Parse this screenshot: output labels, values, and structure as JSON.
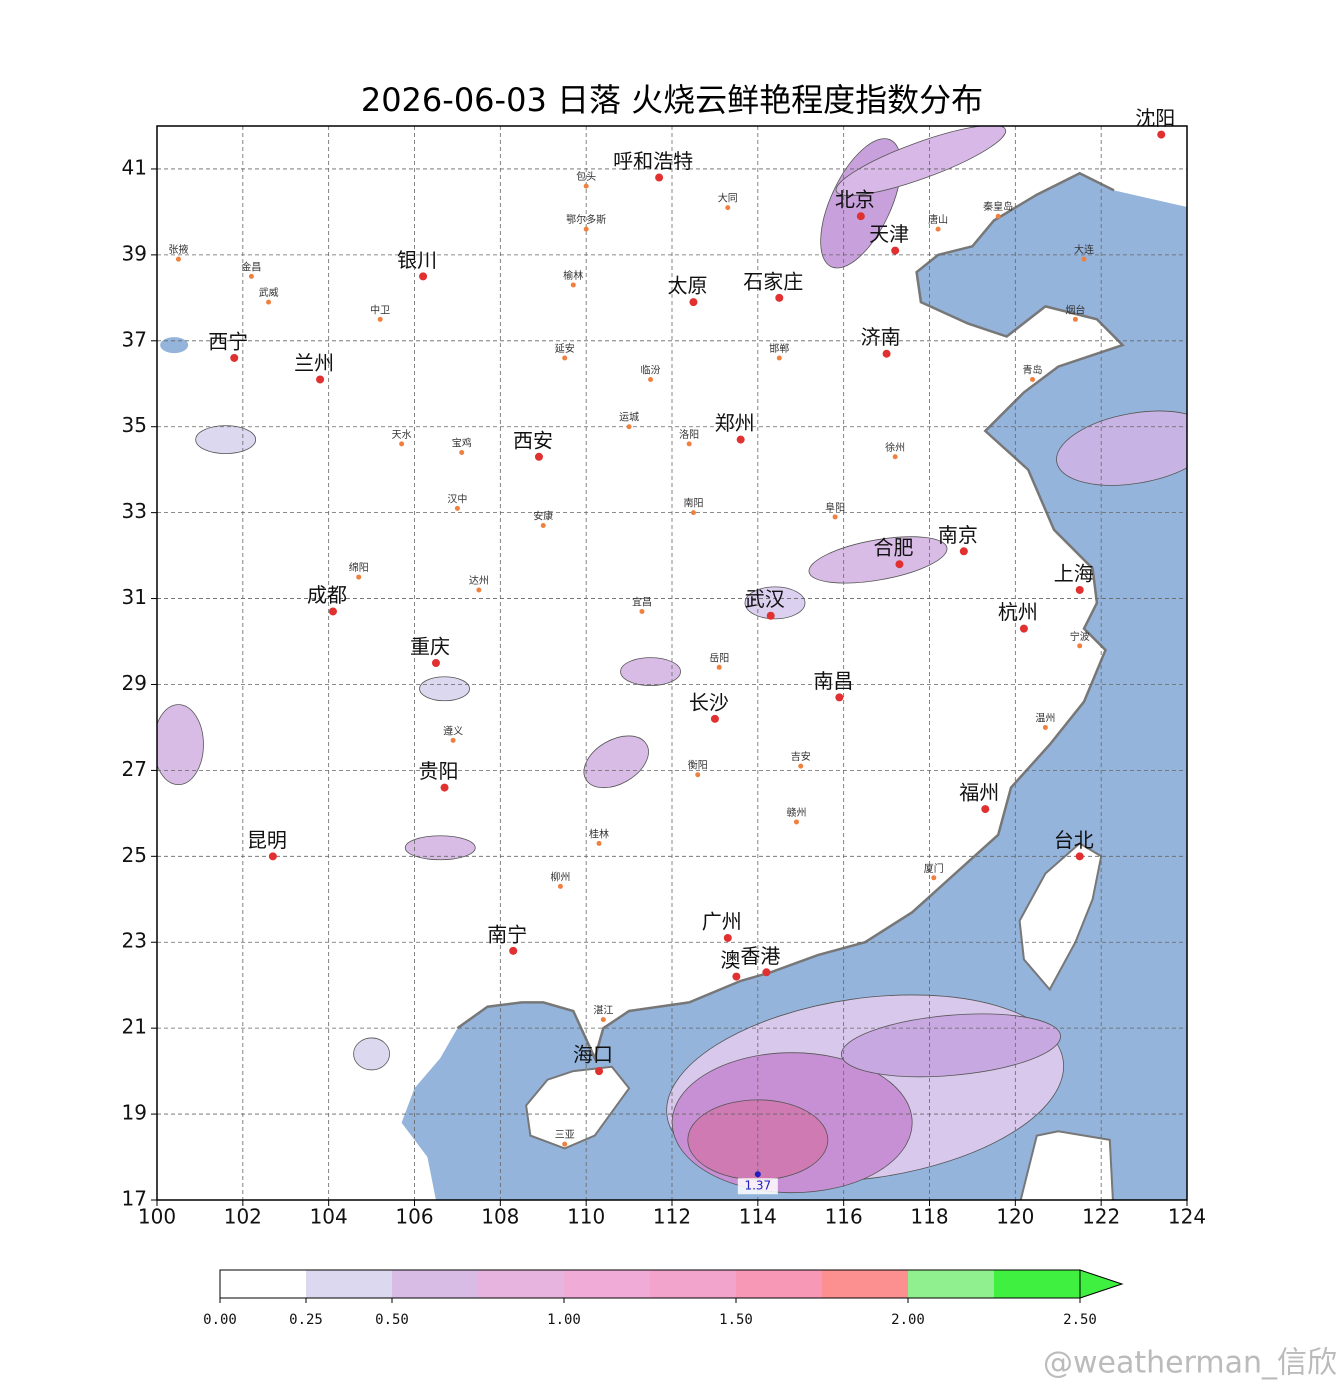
{
  "title": "2026-06-03 日落 火烧云鲜艳程度指数分布",
  "map": {
    "xlim": [
      100,
      124
    ],
    "ylim": [
      17,
      42
    ],
    "xticks": [
      100,
      102,
      104,
      106,
      108,
      110,
      112,
      114,
      116,
      118,
      120,
      122,
      124
    ],
    "yticks": [
      17,
      19,
      21,
      23,
      25,
      27,
      29,
      31,
      33,
      35,
      37,
      39,
      41
    ],
    "grid": true,
    "sea_color": "#94b4dc"
  },
  "cities_major": [
    "沈阳",
    "呼和浩特",
    "北京",
    "天津",
    "银川",
    "太原",
    "石家庄",
    "西宁",
    "兰州",
    "济南",
    "西安",
    "郑州",
    "合肥",
    "南京",
    "上海",
    "成都",
    "武汉",
    "杭州",
    "重庆",
    "南昌",
    "长沙",
    "贵阳",
    "福州",
    "昆明",
    "台北",
    "广州",
    "南宁",
    "澳",
    "香港",
    "海口"
  ],
  "cities_minor": [
    "张掖",
    "武威",
    "金昌",
    "中卫",
    "延安",
    "榆林",
    "大同",
    "包头",
    "鄂尔多斯",
    "临汾",
    "运城",
    "洛阳",
    "南阳",
    "宝鸡",
    "天水",
    "汉中",
    "安康",
    "达州",
    "宜昌",
    "岳阳",
    "赣州",
    "桂林",
    "柳州",
    "湛江",
    "厦门",
    "温州",
    "宁波",
    "青岛",
    "烟台",
    "徐州",
    "大连",
    "唐山",
    "秦皇岛",
    "邯郸",
    "三亚",
    "遵义",
    "绵阳",
    "吉安",
    "衡阳",
    "阜阳"
  ],
  "annotation": "1.37",
  "colorbar": {
    "bounds": [
      0,
      0.25,
      0.5,
      0.75,
      1,
      1.25,
      1.5,
      1.75,
      2,
      2.25,
      2.5
    ],
    "colors": [
      "#ffffff",
      "#dcd8f0",
      "#d8bce6",
      "#e6b4de",
      "#f0acd6",
      "#f2a4cc",
      "#f698b6",
      "#fc9090",
      "#90f090",
      "#40f040"
    ],
    "extend": "max",
    "ticks": [
      {
        "value": 0,
        "label": "0.00"
      },
      {
        "value": 0.25,
        "label": "0.25"
      },
      {
        "value": 0.5,
        "label": "0.50"
      },
      {
        "value": 1,
        "label": "1.00"
      },
      {
        "value": 1.5,
        "label": "1.50"
      },
      {
        "value": 2,
        "label": "2.00"
      },
      {
        "value": 2.5,
        "label": "2.50"
      }
    ]
  },
  "watermark": "@weatherman_信欣"
}
